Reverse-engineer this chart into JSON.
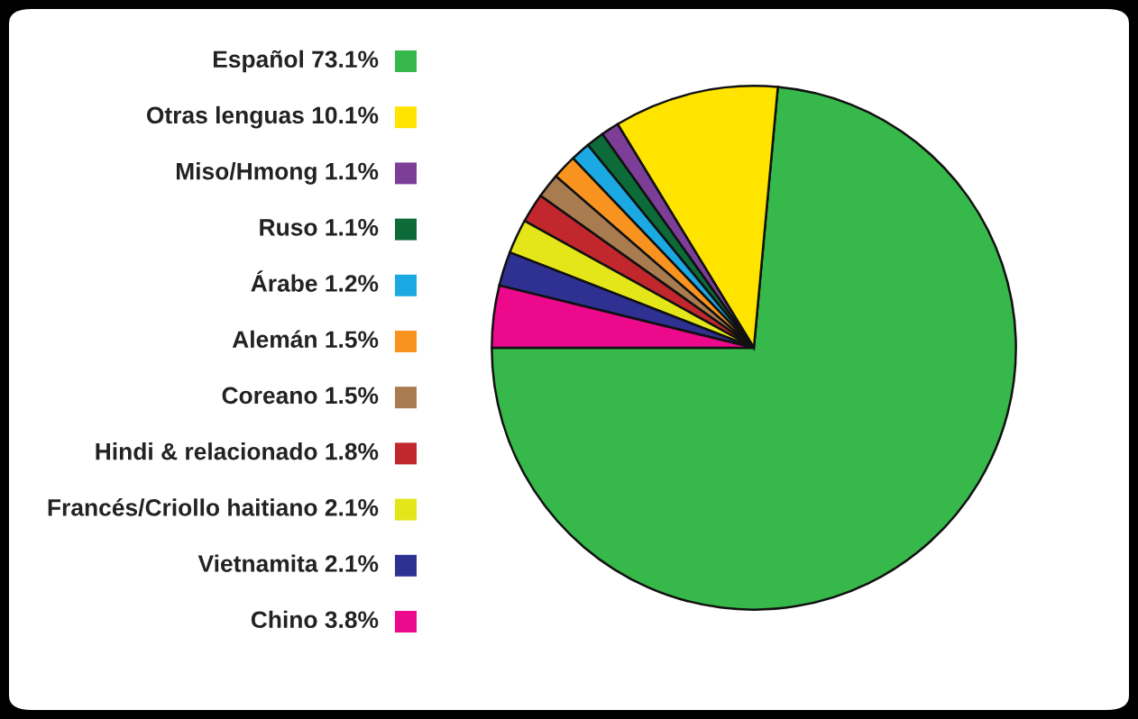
{
  "chart_data": {
    "type": "pie",
    "categories": [
      "Español",
      "Otras lenguas",
      "Miso/Hmong",
      "Ruso",
      "Árabe",
      "Alemán",
      "Coreano",
      "Hindi & relacionado",
      "Francés/Criollo haitiano",
      "Vietnamita",
      "Chino"
    ],
    "values": [
      73.1,
      10.1,
      1.1,
      1.1,
      1.2,
      1.5,
      1.5,
      1.8,
      2.1,
      2.1,
      3.8
    ],
    "value_labels": [
      "73.1%",
      "10.1%",
      "1.1%",
      "1.1%",
      "1.2%",
      "1.5%",
      "1.5%",
      "1.8%",
      "2.1%",
      "2.1%",
      "3.8%"
    ],
    "colors": [
      "#37b84a",
      "#ffe400",
      "#7c3e97",
      "#0c6b38",
      "#1aa9e2",
      "#f7931e",
      "#a97c50",
      "#c1272d",
      "#e5e619",
      "#2e3192",
      "#ec098c"
    ],
    "legend": "left"
  }
}
